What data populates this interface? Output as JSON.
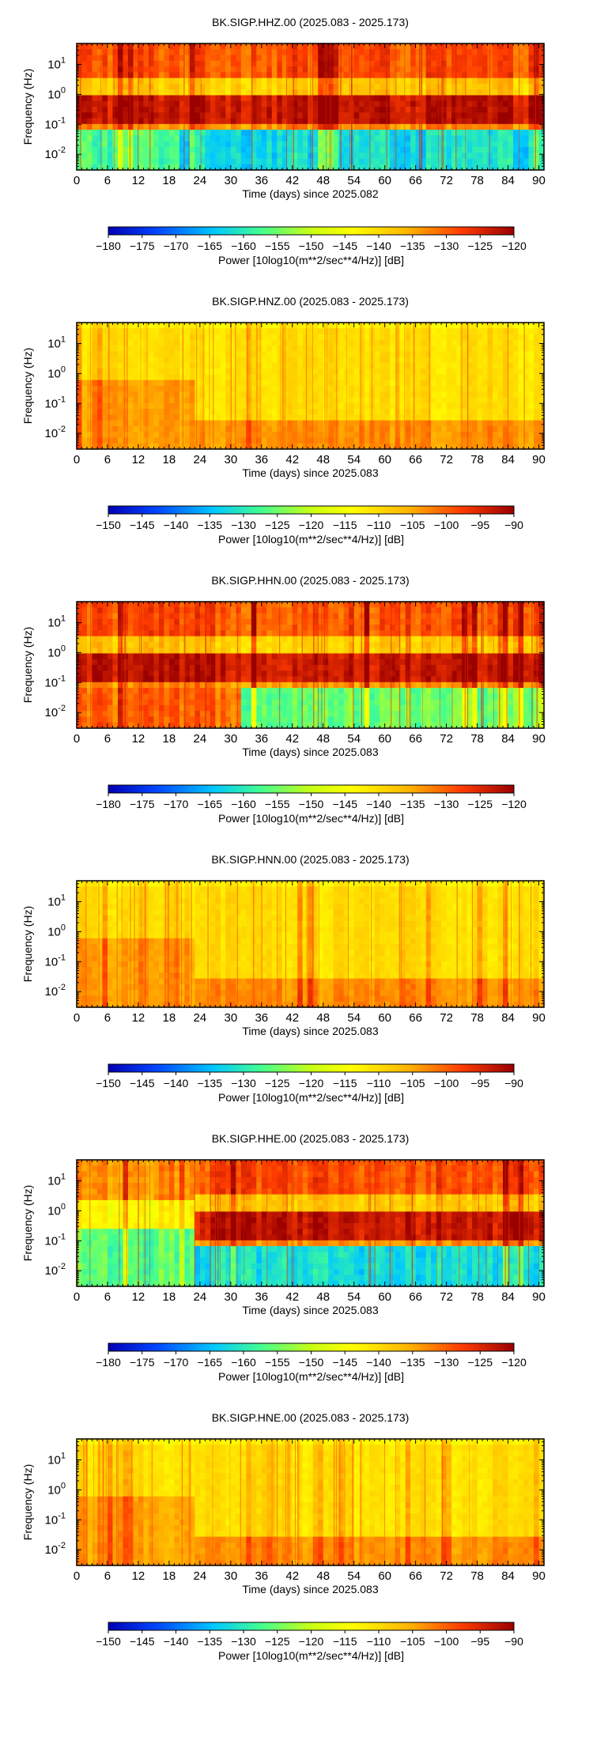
{
  "chart_data": [
    {
      "type": "heatmap",
      "title": "BK.SIGP.HHZ.00 (2025.083 - 2025.173)",
      "xlabel": "Time (days) since 2025.082",
      "ylabel": "Frequency (Hz)",
      "xlim": [
        0,
        91
      ],
      "x_ticks": [
        0,
        6,
        12,
        18,
        24,
        30,
        36,
        42,
        48,
        54,
        60,
        66,
        72,
        78,
        84,
        90
      ],
      "y_scale": "log",
      "ylim": [
        0.003,
        50
      ],
      "y_ticks": [
        {
          "value": 0.01,
          "base": "10",
          "exp": "-2"
        },
        {
          "value": 0.1,
          "base": "10",
          "exp": "-1"
        },
        {
          "value": 1,
          "base": "10",
          "exp": "0"
        },
        {
          "value": 10,
          "base": "10",
          "exp": "1"
        }
      ],
      "colorbar": {
        "label": "Power [10log10(m**2/sec**4/Hz)] [dB]",
        "range": [
          -180,
          -120
        ],
        "ticks": [
          "−180",
          "−175",
          "−170",
          "−165",
          "−160",
          "−155",
          "−150",
          "−145",
          "−140",
          "−135",
          "−130",
          "−125",
          "−120"
        ]
      }
    },
    {
      "type": "heatmap",
      "title": "BK.SIGP.HNZ.00 (2025.083 - 2025.173)",
      "xlabel": "Time (days) since 2025.083",
      "ylabel": "Frequency (Hz)",
      "xlim": [
        0,
        91
      ],
      "x_ticks": [
        0,
        6,
        12,
        18,
        24,
        30,
        36,
        42,
        48,
        54,
        60,
        66,
        72,
        78,
        84,
        90
      ],
      "y_scale": "log",
      "ylim": [
        0.003,
        50
      ],
      "y_ticks": [
        {
          "value": 0.01,
          "base": "10",
          "exp": "-2"
        },
        {
          "value": 0.1,
          "base": "10",
          "exp": "-1"
        },
        {
          "value": 1,
          "base": "10",
          "exp": "0"
        },
        {
          "value": 10,
          "base": "10",
          "exp": "1"
        }
      ],
      "colorbar": {
        "label": "Power [10log10(m**2/sec**4/Hz)] [dB]",
        "range": [
          -150,
          -90
        ],
        "ticks": [
          "−150",
          "−145",
          "−140",
          "−135",
          "−130",
          "−125",
          "−120",
          "−115",
          "−110",
          "−105",
          "−100",
          "−95",
          "−90"
        ]
      }
    },
    {
      "type": "heatmap",
      "title": "BK.SIGP.HHN.00 (2025.083 - 2025.173)",
      "xlabel": "Time (days) since 2025.083",
      "ylabel": "Frequency (Hz)",
      "xlim": [
        0,
        91
      ],
      "x_ticks": [
        0,
        6,
        12,
        18,
        24,
        30,
        36,
        42,
        48,
        54,
        60,
        66,
        72,
        78,
        84,
        90
      ],
      "y_scale": "log",
      "ylim": [
        0.003,
        50
      ],
      "y_ticks": [
        {
          "value": 0.01,
          "base": "10",
          "exp": "-2"
        },
        {
          "value": 0.1,
          "base": "10",
          "exp": "-1"
        },
        {
          "value": 1,
          "base": "10",
          "exp": "0"
        },
        {
          "value": 10,
          "base": "10",
          "exp": "1"
        }
      ],
      "colorbar": {
        "label": "Power [10log10(m**2/sec**4/Hz)] [dB]",
        "range": [
          -180,
          -120
        ],
        "ticks": [
          "−180",
          "−175",
          "−170",
          "−165",
          "−160",
          "−155",
          "−150",
          "−145",
          "−140",
          "−135",
          "−130",
          "−125",
          "−120"
        ]
      }
    },
    {
      "type": "heatmap",
      "title": "BK.SIGP.HNN.00 (2025.083 - 2025.173)",
      "xlabel": "Time (days) since 2025.083",
      "ylabel": "Frequency (Hz)",
      "xlim": [
        0,
        91
      ],
      "x_ticks": [
        0,
        6,
        12,
        18,
        24,
        30,
        36,
        42,
        48,
        54,
        60,
        66,
        72,
        78,
        84,
        90
      ],
      "y_scale": "log",
      "ylim": [
        0.003,
        50
      ],
      "y_ticks": [
        {
          "value": 0.01,
          "base": "10",
          "exp": "-2"
        },
        {
          "value": 0.1,
          "base": "10",
          "exp": "-1"
        },
        {
          "value": 1,
          "base": "10",
          "exp": "0"
        },
        {
          "value": 10,
          "base": "10",
          "exp": "1"
        }
      ],
      "colorbar": {
        "label": "Power [10log10(m**2/sec**4/Hz)] [dB]",
        "range": [
          -150,
          -90
        ],
        "ticks": [
          "−150",
          "−145",
          "−140",
          "−135",
          "−130",
          "−125",
          "−120",
          "−115",
          "−110",
          "−105",
          "−100",
          "−95",
          "−90"
        ]
      }
    },
    {
      "type": "heatmap",
      "title": "BK.SIGP.HHE.00 (2025.083 - 2025.173)",
      "xlabel": "Time (days) since 2025.083",
      "ylabel": "Frequency (Hz)",
      "xlim": [
        0,
        91
      ],
      "x_ticks": [
        0,
        6,
        12,
        18,
        24,
        30,
        36,
        42,
        48,
        54,
        60,
        66,
        72,
        78,
        84,
        90
      ],
      "y_scale": "log",
      "ylim": [
        0.003,
        50
      ],
      "y_ticks": [
        {
          "value": 0.01,
          "base": "10",
          "exp": "-2"
        },
        {
          "value": 0.1,
          "base": "10",
          "exp": "-1"
        },
        {
          "value": 1,
          "base": "10",
          "exp": "0"
        },
        {
          "value": 10,
          "base": "10",
          "exp": "1"
        }
      ],
      "colorbar": {
        "label": "Power [10log10(m**2/sec**4/Hz)] [dB]",
        "range": [
          -180,
          -120
        ],
        "ticks": [
          "−180",
          "−175",
          "−170",
          "−165",
          "−160",
          "−155",
          "−150",
          "−145",
          "−140",
          "−135",
          "−130",
          "−125",
          "−120"
        ]
      }
    },
    {
      "type": "heatmap",
      "title": "BK.SIGP.HNE.00 (2025.083 - 2025.173)",
      "xlabel": "Time (days) since 2025.083",
      "ylabel": "Frequency (Hz)",
      "xlim": [
        0,
        91
      ],
      "x_ticks": [
        0,
        6,
        12,
        18,
        24,
        30,
        36,
        42,
        48,
        54,
        60,
        66,
        72,
        78,
        84,
        90
      ],
      "y_scale": "log",
      "ylim": [
        0.003,
        50
      ],
      "y_ticks": [
        {
          "value": 0.01,
          "base": "10",
          "exp": "-2"
        },
        {
          "value": 0.1,
          "base": "10",
          "exp": "-1"
        },
        {
          "value": 1,
          "base": "10",
          "exp": "0"
        },
        {
          "value": 10,
          "base": "10",
          "exp": "1"
        }
      ],
      "colorbar": {
        "label": "Power [10log10(m**2/sec**4/Hz)] [dB]",
        "range": [
          -150,
          -90
        ],
        "ticks": [
          "−150",
          "−145",
          "−140",
          "−135",
          "−130",
          "−125",
          "−120",
          "−115",
          "−110",
          "−105",
          "−100",
          "−95",
          "−90"
        ]
      }
    }
  ]
}
